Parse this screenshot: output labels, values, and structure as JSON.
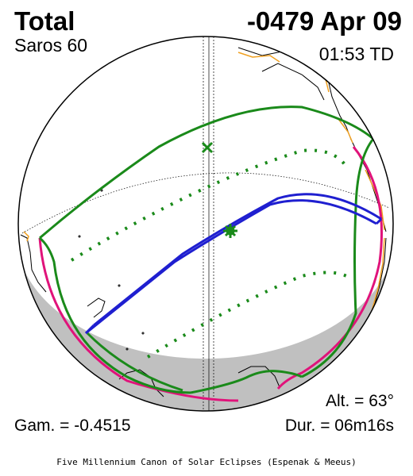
{
  "eclipse": {
    "type": "Total",
    "date": "-0479 Apr 09",
    "saros": "Saros  60",
    "time": "01:53 TD",
    "altitude": "Alt. = 63°",
    "gamma": "Gam. = -0.4515",
    "duration": "Dur. = 06m16s"
  },
  "credit": "Five Millennium Canon of Solar Eclipses (Espenak & Meeus)",
  "colors": {
    "penumbra_limits": "#1a8a1a",
    "rise_set_curves": "#e0137a",
    "central_path": "#1f1fd0",
    "coastlines": "#000000",
    "borders": "#f0a020",
    "night_side": "#c0c0c0"
  }
}
